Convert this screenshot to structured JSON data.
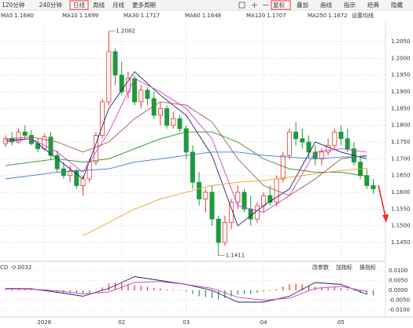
{
  "toolbar": {
    "periods": [
      "120分钟",
      "240分钟",
      "日线",
      "周线",
      "月线",
      "更多周期"
    ],
    "active": 2,
    "tools": [
      "复权",
      "叠加",
      "画线",
      "指示",
      "经典",
      "隐藏"
    ],
    "active_tool": 0,
    "ma_settings": "设置均线",
    "indicator_buttons": [
      "改参数",
      "加指标",
      "换指标"
    ]
  },
  "chart_data": {
    "type": "candlestick",
    "candles": [
      [
        1.1745,
        1.177,
        1.1735,
        1.176
      ],
      [
        1.176,
        1.178,
        1.174,
        1.175
      ],
      [
        1.175,
        1.179,
        1.1745,
        1.178
      ],
      [
        1.178,
        1.18,
        1.176,
        1.177
      ],
      [
        1.177,
        1.1785,
        1.174,
        1.1745
      ],
      [
        1.1745,
        1.176,
        1.172,
        1.173
      ],
      [
        1.173,
        1.1775,
        1.1725,
        1.1765
      ],
      [
        1.1765,
        1.178,
        1.17,
        1.171
      ],
      [
        1.171,
        1.1725,
        1.166,
        1.167
      ],
      [
        1.167,
        1.169,
        1.164,
        1.165
      ],
      [
        1.165,
        1.168,
        1.163,
        1.1665
      ],
      [
        1.1665,
        1.167,
        1.161,
        1.162
      ],
      [
        1.162,
        1.165,
        1.159,
        1.164
      ],
      [
        1.164,
        1.17,
        1.163,
        1.169
      ],
      [
        1.169,
        1.178,
        1.168,
        1.177
      ],
      [
        1.177,
        1.188,
        1.176,
        1.187
      ],
      [
        1.187,
        1.2082,
        1.186,
        1.202
      ],
      [
        1.202,
        1.203,
        1.192,
        1.195
      ],
      [
        1.195,
        1.199,
        1.189,
        1.19
      ],
      [
        1.19,
        1.196,
        1.188,
        1.194
      ],
      [
        1.194,
        1.195,
        1.186,
        1.187
      ],
      [
        1.187,
        1.192,
        1.185,
        1.1905
      ],
      [
        1.1905,
        1.1915,
        1.186,
        1.188
      ],
      [
        1.188,
        1.19,
        1.182,
        1.183
      ],
      [
        1.183,
        1.187,
        1.18,
        1.185
      ],
      [
        1.185,
        1.186,
        1.179,
        1.18
      ],
      [
        1.18,
        1.184,
        1.179,
        1.182
      ],
      [
        1.182,
        1.183,
        1.178,
        1.179
      ],
      [
        1.179,
        1.18,
        1.17,
        1.172
      ],
      [
        1.172,
        1.174,
        1.161,
        1.163
      ],
      [
        1.163,
        1.166,
        1.156,
        1.158
      ],
      [
        1.158,
        1.161,
        1.154,
        1.16
      ],
      [
        1.16,
        1.162,
        1.15,
        1.152
      ],
      [
        1.152,
        1.153,
        1.1411,
        1.145
      ],
      [
        1.145,
        1.153,
        1.144,
        1.151
      ],
      [
        1.151,
        1.158,
        1.149,
        1.157
      ],
      [
        1.157,
        1.162,
        1.155,
        1.16
      ],
      [
        1.16,
        1.161,
        1.154,
        1.155
      ],
      [
        1.155,
        1.159,
        1.15,
        1.152
      ],
      [
        1.152,
        1.157,
        1.151,
        1.156
      ],
      [
        1.156,
        1.16,
        1.154,
        1.159
      ],
      [
        1.159,
        1.162,
        1.156,
        1.157
      ],
      [
        1.157,
        1.165,
        1.156,
        1.164
      ],
      [
        1.164,
        1.172,
        1.163,
        1.171
      ],
      [
        1.171,
        1.179,
        1.17,
        1.178
      ],
      [
        1.178,
        1.181,
        1.174,
        1.176
      ],
      [
        1.176,
        1.179,
        1.173,
        1.175
      ],
      [
        1.175,
        1.177,
        1.17,
        1.172
      ],
      [
        1.172,
        1.174,
        1.168,
        1.17
      ],
      [
        1.17,
        1.173,
        1.168,
        1.172
      ],
      [
        1.172,
        1.176,
        1.171,
        1.174
      ],
      [
        1.174,
        1.179,
        1.173,
        1.178
      ],
      [
        1.178,
        1.18,
        1.174,
        1.176
      ],
      [
        1.176,
        1.179,
        1.172,
        1.173
      ],
      [
        1.173,
        1.175,
        1.168,
        1.169
      ],
      [
        1.169,
        1.171,
        1.164,
        1.165
      ],
      [
        1.165,
        1.167,
        1.161,
        1.162
      ],
      [
        1.162,
        1.164,
        1.1595,
        1.161
      ]
    ],
    "up_color": "#e8322e",
    "down_color": "#1e9a3c",
    "ma_x": [
      0,
      4,
      8,
      12,
      16,
      20,
      24,
      28,
      32,
      36,
      40,
      44,
      48,
      52,
      56
    ],
    "series": [
      {
        "name": "MA5",
        "color": "#20235a",
        "last": {
          "value": 1.168,
          "label": "1.1680"
        },
        "values": [
          1.1755,
          1.176,
          1.17,
          1.164,
          1.185,
          1.196,
          1.189,
          1.183,
          1.171,
          1.15,
          1.156,
          1.161,
          1.175,
          1.172,
          1.17
        ]
      },
      {
        "name": "MA10",
        "color": "#d23fd0",
        "last": {
          "value": 1.1699,
          "label": "1.1699"
        },
        "values": [
          1.175,
          1.176,
          1.172,
          1.166,
          1.178,
          1.194,
          1.19,
          1.185,
          1.176,
          1.156,
          1.154,
          1.159,
          1.172,
          1.173,
          1.172
        ]
      },
      {
        "name": "MA30",
        "color": "#9b5a4a",
        "last": {
          "value": 1.1717,
          "label": "1.1717"
        },
        "values": [
          1.176,
          1.1765,
          1.175,
          1.172,
          1.175,
          1.182,
          1.187,
          1.186,
          1.181,
          1.17,
          1.162,
          1.159,
          1.164,
          1.17,
          1.171
        ]
      },
      {
        "name": "MA60",
        "color": "#2e8b2e",
        "last": {
          "value": 1.1648,
          "label": "1.1648"
        },
        "values": [
          1.168,
          1.169,
          1.17,
          1.169,
          1.17,
          1.173,
          1.176,
          1.178,
          1.178,
          1.175,
          1.17,
          1.167,
          1.166,
          1.166,
          1.1648
        ]
      },
      {
        "name": "MA120",
        "color": "#3a78d0",
        "last": {
          "value": 1.1707,
          "label": "1.1707"
        },
        "values": [
          1.164,
          1.165,
          1.166,
          1.1665,
          1.167,
          1.169,
          1.17,
          1.171,
          1.172,
          1.172,
          1.171,
          1.1705,
          1.17,
          1.1705,
          1.1707
        ]
      },
      {
        "name": "MA250",
        "color": "#f0a020",
        "last": {
          "value": 1.1672,
          "label": "1.1672"
        },
        "values": [
          null,
          null,
          null,
          1.147,
          1.151,
          1.155,
          1.158,
          1.16,
          1.162,
          1.163,
          1.1635,
          1.1645,
          1.1655,
          1.1665,
          1.1672
        ]
      }
    ],
    "ylim": [
      1.1402,
      1.2104
    ],
    "yticks": [
      {
        "value": 1.205,
        "label": "1.2050"
      },
      {
        "value": 1.2,
        "label": "1.2000"
      },
      {
        "value": 1.195,
        "label": "1.1950"
      },
      {
        "value": 1.19,
        "label": "1.1900"
      },
      {
        "value": 1.185,
        "label": "1.1850"
      },
      {
        "value": 1.18,
        "label": "1.1800"
      },
      {
        "value": 1.175,
        "label": "1.1750"
      },
      {
        "value": 1.17,
        "label": "1.1700"
      },
      {
        "value": 1.165,
        "label": "1.1650"
      },
      {
        "value": 1.16,
        "label": "1.1600"
      },
      {
        "value": 1.155,
        "label": "1.1550"
      },
      {
        "value": 1.15,
        "label": "1.1500"
      },
      {
        "value": 1.145,
        "label": "1.1450"
      }
    ],
    "xticks": [
      {
        "value": 6,
        "label": "2026"
      },
      {
        "value": 18,
        "label": "02"
      },
      {
        "value": 28,
        "label": "03"
      },
      {
        "value": 40,
        "label": "04"
      },
      {
        "value": 52,
        "label": "05"
      }
    ],
    "grid": true,
    "high_label": 1.2082,
    "low_label": 1.1411,
    "macd": {
      "name": "CD",
      "current": -0.0032,
      "histogram": [
        0.0005,
        0.0006,
        0.0008,
        0.0006,
        0.0004,
        0.0002,
        0.0001,
        -0.0004,
        -0.0008,
        -0.0012,
        -0.0013,
        -0.0016,
        -0.0015,
        -0.001,
        0.0002,
        0.0015,
        0.0035,
        0.004,
        0.0036,
        0.0032,
        0.0026,
        0.0022,
        0.0018,
        0.0012,
        0.001,
        0.0005,
        0.0004,
        0.0002,
        -0.0006,
        -0.0018,
        -0.003,
        -0.0034,
        -0.004,
        -0.0046,
        -0.004,
        -0.003,
        -0.0022,
        -0.002,
        -0.0018,
        -0.0012,
        -0.0006,
        -0.0004,
        0.0006,
        0.002,
        0.0032,
        0.0034,
        0.003,
        0.0024,
        0.0018,
        0.0016,
        0.0014,
        0.0016,
        0.0012,
        0.0006,
        -0.0004,
        -0.0014,
        -0.0022,
        -0.0026
      ],
      "dif": {
        "color": "#20235a",
        "values": [
          0.001,
          0.0008,
          -0.001,
          -0.003,
          0.001,
          0.007,
          0.005,
          0.003,
          0,
          -0.006,
          -0.006,
          -0.003,
          0.004,
          0.003,
          -0.002
        ]
      },
      "dea": {
        "color": "#d23fd0",
        "values": [
          0.0008,
          0.0006,
          -0.0002,
          -0.0018,
          -0.0008,
          0.004,
          0.0045,
          0.003,
          0.001,
          -0.0035,
          -0.005,
          -0.004,
          0.001,
          0.002,
          -0.0005
        ]
      },
      "ylim": [
        -0.0128,
        0.014
      ],
      "yticks": [
        {
          "value": 0.01,
          "label": "0.0100"
        },
        {
          "value": 0.005,
          "label": "0.0050"
        },
        {
          "value": 0,
          "label": "0.0000"
        },
        {
          "value": -0.005,
          "label": "-0.0050"
        },
        {
          "value": -0.01,
          "label": "-0.0100"
        }
      ]
    }
  }
}
